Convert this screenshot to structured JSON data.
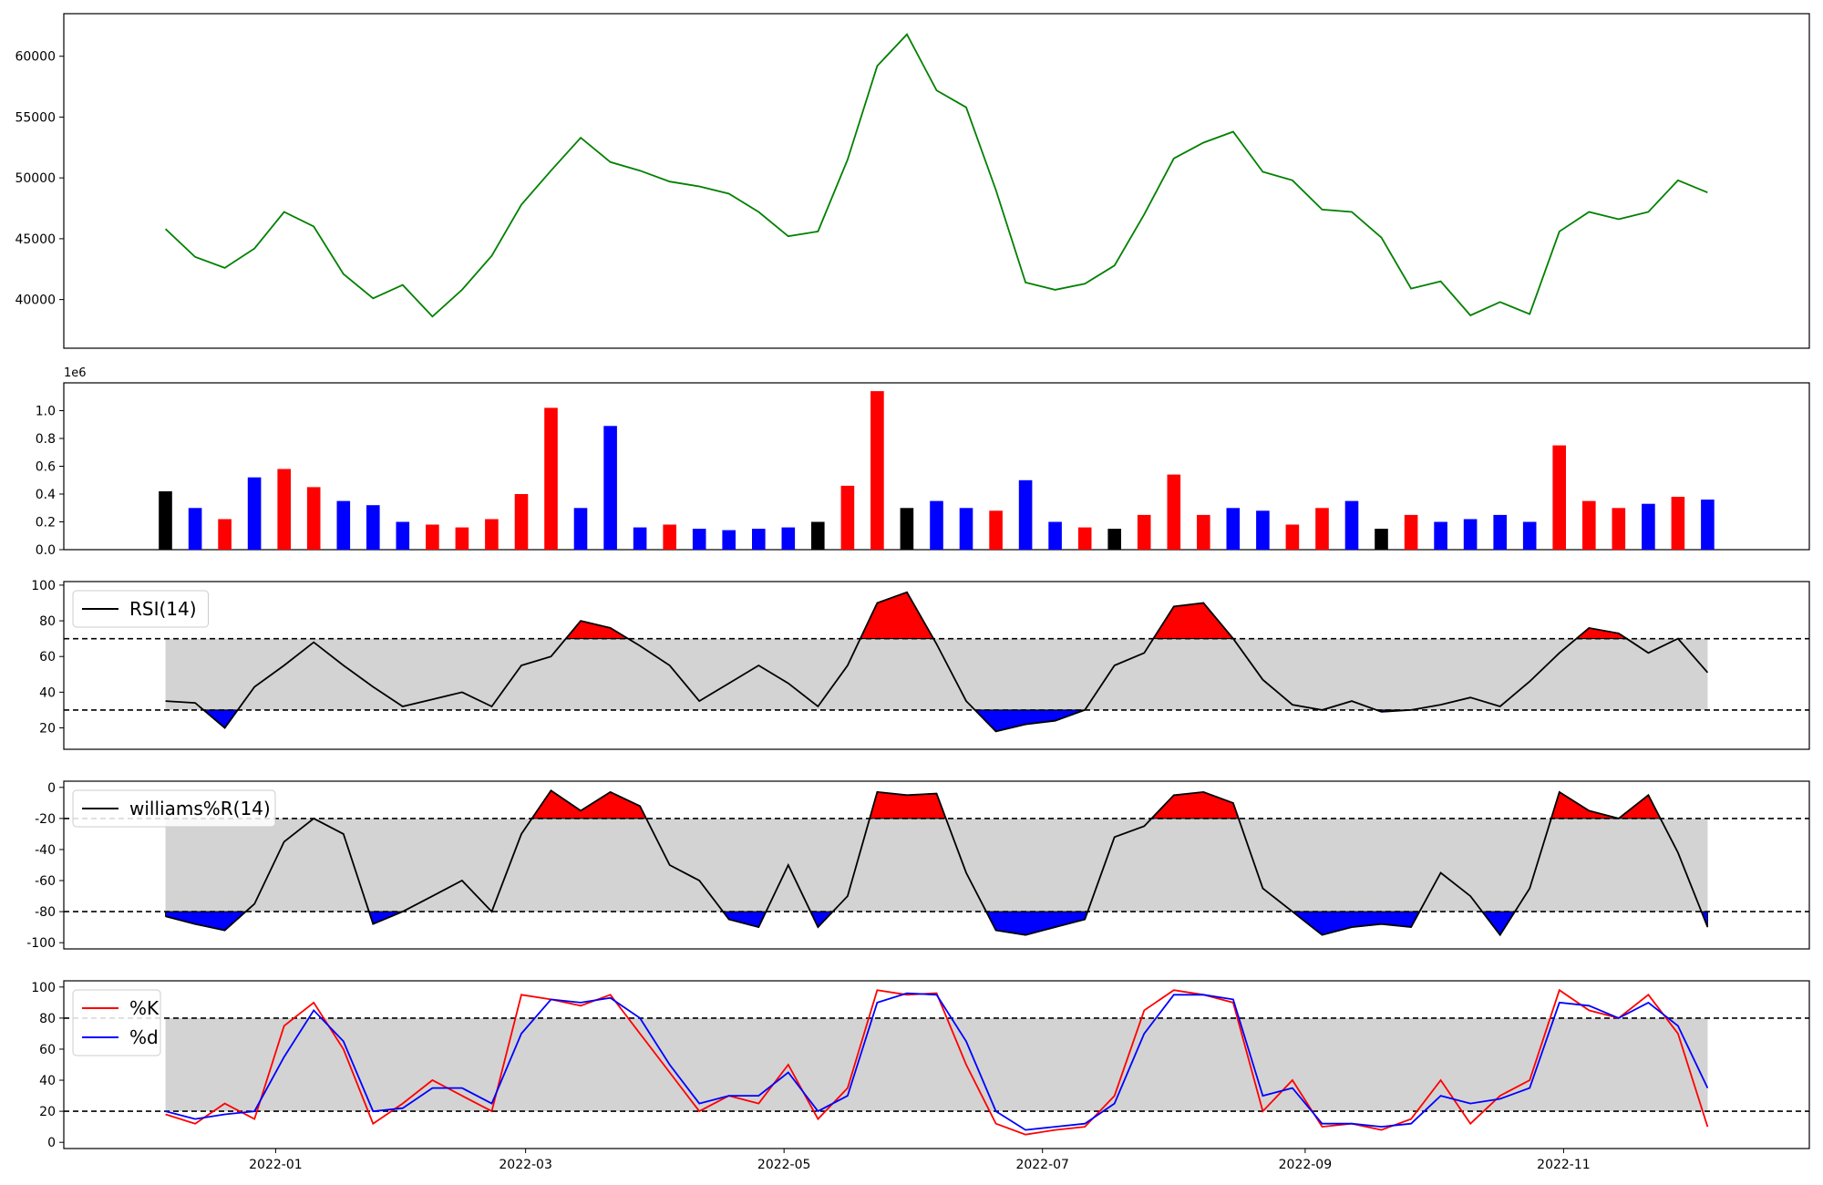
{
  "chart_data": [
    {
      "type": "line",
      "panel": "price",
      "color": "#008000",
      "ylim": [
        36000,
        63500
      ],
      "yticks": [
        "40000",
        "45000",
        "50000",
        "55000",
        "60000"
      ],
      "grid": false,
      "x": [
        "2021-12-06",
        "2021-12-13",
        "2021-12-20",
        "2021-12-27",
        "2022-01-03",
        "2022-01-10",
        "2022-01-17",
        "2022-01-24",
        "2022-01-31",
        "2022-02-07",
        "2022-02-14",
        "2022-02-21",
        "2022-02-28",
        "2022-03-07",
        "2022-03-14",
        "2022-03-21",
        "2022-03-28",
        "2022-04-04",
        "2022-04-11",
        "2022-04-18",
        "2022-04-25",
        "2022-05-02",
        "2022-05-09",
        "2022-05-16",
        "2022-05-23",
        "2022-05-30",
        "2022-06-06",
        "2022-06-13",
        "2022-06-20",
        "2022-06-27",
        "2022-07-04",
        "2022-07-11",
        "2022-07-18",
        "2022-07-25",
        "2022-08-01",
        "2022-08-08",
        "2022-08-15",
        "2022-08-22",
        "2022-08-29",
        "2022-09-05",
        "2022-09-12",
        "2022-09-19",
        "2022-09-26",
        "2022-10-03",
        "2022-10-10",
        "2022-10-17",
        "2022-10-24",
        "2022-10-31",
        "2022-11-07",
        "2022-11-14",
        "2022-11-21",
        "2022-11-28",
        "2022-12-05"
      ],
      "values": [
        45800,
        43500,
        42600,
        44200,
        47200,
        46000,
        42100,
        40100,
        41200,
        38600,
        40800,
        43600,
        47800,
        50600,
        53300,
        51300,
        50600,
        49700,
        49300,
        48700,
        47200,
        45200,
        45600,
        51500,
        59200,
        61800,
        57200,
        55800,
        49000,
        41400,
        40800,
        41300,
        42800,
        47000,
        51600,
        52900,
        53800,
        50500,
        49800,
        47400,
        47200,
        45100,
        40900,
        41500,
        38700,
        39800,
        38800,
        45600,
        47200,
        46600,
        47200,
        49800,
        48800
      ]
    },
    {
      "type": "bar",
      "panel": "volume",
      "offset_label": "1e6",
      "ylim": [
        0,
        1.2
      ],
      "yticks": [
        "0.0",
        "0.2",
        "0.4",
        "0.6",
        "0.8",
        "1.0"
      ],
      "colors": {
        "up": "#ff0000",
        "down": "#0000ff",
        "flat": "#000000"
      },
      "x": [
        "2021-12-06",
        "2021-12-13",
        "2021-12-20",
        "2021-12-27",
        "2022-01-03",
        "2022-01-10",
        "2022-01-17",
        "2022-01-24",
        "2022-01-31",
        "2022-02-07",
        "2022-02-14",
        "2022-02-21",
        "2022-02-28",
        "2022-03-07",
        "2022-03-14",
        "2022-03-21",
        "2022-03-28",
        "2022-04-04",
        "2022-04-11",
        "2022-04-18",
        "2022-04-25",
        "2022-05-02",
        "2022-05-09",
        "2022-05-16",
        "2022-05-23",
        "2022-05-30",
        "2022-06-06",
        "2022-06-13",
        "2022-06-20",
        "2022-06-27",
        "2022-07-04",
        "2022-07-11",
        "2022-07-18",
        "2022-07-25",
        "2022-08-01",
        "2022-08-08",
        "2022-08-15",
        "2022-08-22",
        "2022-08-29",
        "2022-09-05",
        "2022-09-12",
        "2022-09-19",
        "2022-09-26",
        "2022-10-03",
        "2022-10-10",
        "2022-10-17",
        "2022-10-24",
        "2022-10-31",
        "2022-11-07",
        "2022-11-14",
        "2022-11-21",
        "2022-11-28",
        "2022-12-05"
      ],
      "values": [
        0.42,
        0.3,
        0.22,
        0.52,
        0.58,
        0.45,
        0.35,
        0.32,
        0.2,
        0.18,
        0.16,
        0.22,
        0.4,
        1.02,
        0.3,
        0.89,
        0.16,
        0.18,
        0.15,
        0.14,
        0.15,
        0.16,
        0.2,
        0.46,
        1.14,
        0.3,
        0.35,
        0.3,
        0.28,
        0.5,
        0.2,
        0.16,
        0.15,
        0.25,
        0.54,
        0.25,
        0.3,
        0.28,
        0.18,
        0.3,
        0.35,
        0.15,
        0.25,
        0.2,
        0.22,
        0.25,
        0.2,
        0.75,
        0.35,
        0.3,
        0.33,
        0.38,
        0.36
      ],
      "directions": [
        "flat",
        "down",
        "up",
        "down",
        "up",
        "up",
        "down",
        "down",
        "down",
        "up",
        "up",
        "up",
        "up",
        "up",
        "down",
        "down",
        "down",
        "up",
        "down",
        "down",
        "down",
        "down",
        "flat",
        "up",
        "up",
        "flat",
        "down",
        "down",
        "up",
        "down",
        "down",
        "up",
        "flat",
        "up",
        "up",
        "up",
        "down",
        "down",
        "up",
        "up",
        "down",
        "flat",
        "up",
        "down",
        "down",
        "down",
        "down",
        "up",
        "up",
        "up",
        "down",
        "up",
        "down"
      ]
    },
    {
      "type": "line",
      "panel": "rsi",
      "series": [
        {
          "name": "RSI(14)",
          "color": "#000000",
          "values": [
            35,
            34,
            20,
            43,
            55,
            68,
            55,
            43,
            32,
            36,
            40,
            32,
            55,
            60,
            80,
            76,
            66,
            55,
            35,
            45,
            55,
            45,
            32,
            55,
            90,
            96,
            67,
            35,
            18,
            22,
            24,
            30,
            55,
            62,
            88,
            90,
            70,
            47,
            33,
            30,
            35,
            29,
            30,
            33,
            37,
            32,
            46,
            62,
            76,
            73,
            62,
            70,
            51
          ]
        }
      ],
      "x": [
        "2021-12-06",
        "2021-12-13",
        "2021-12-20",
        "2021-12-27",
        "2022-01-03",
        "2022-01-10",
        "2022-01-17",
        "2022-01-24",
        "2022-01-31",
        "2022-02-07",
        "2022-02-14",
        "2022-02-21",
        "2022-02-28",
        "2022-03-07",
        "2022-03-14",
        "2022-03-21",
        "2022-03-28",
        "2022-04-04",
        "2022-04-11",
        "2022-04-18",
        "2022-04-25",
        "2022-05-02",
        "2022-05-09",
        "2022-05-16",
        "2022-05-23",
        "2022-05-30",
        "2022-06-06",
        "2022-06-13",
        "2022-06-20",
        "2022-06-27",
        "2022-07-04",
        "2022-07-11",
        "2022-07-18",
        "2022-07-25",
        "2022-08-01",
        "2022-08-08",
        "2022-08-15",
        "2022-08-22",
        "2022-08-29",
        "2022-09-05",
        "2022-09-12",
        "2022-09-19",
        "2022-09-26",
        "2022-10-03",
        "2022-10-10",
        "2022-10-17",
        "2022-10-24",
        "2022-10-31",
        "2022-11-07",
        "2022-11-14",
        "2022-11-21",
        "2022-11-28",
        "2022-12-05"
      ],
      "ylim": [
        8,
        102
      ],
      "yticks": [
        "20",
        "40",
        "60",
        "80",
        "100"
      ],
      "upper": 70,
      "lower": 30,
      "band_color": "#d3d3d3",
      "over_color": "#ff0000",
      "under_color": "#0000ff",
      "legend": "upper-left"
    },
    {
      "type": "line",
      "panel": "williams",
      "series": [
        {
          "name": "williams%R(14)",
          "color": "#000000",
          "values": [
            -83,
            -88,
            -92,
            -75,
            -35,
            -20,
            -30,
            -88,
            -80,
            -70,
            -60,
            -80,
            -30,
            -2,
            -15,
            -3,
            -12,
            -50,
            -60,
            -85,
            -90,
            -50,
            -90,
            -70,
            -3,
            -5,
            -4,
            -55,
            -92,
            -95,
            -90,
            -85,
            -32,
            -25,
            -5,
            -3,
            -10,
            -65,
            -80,
            -95,
            -90,
            -88,
            -90,
            -55,
            -70,
            -95,
            -65,
            -3,
            -15,
            -20,
            -5,
            -42,
            -90
          ]
        }
      ],
      "x": [
        "2021-12-06",
        "2021-12-13",
        "2021-12-20",
        "2021-12-27",
        "2022-01-03",
        "2022-01-10",
        "2022-01-17",
        "2022-01-24",
        "2022-01-31",
        "2022-02-07",
        "2022-02-14",
        "2022-02-21",
        "2022-02-28",
        "2022-03-07",
        "2022-03-14",
        "2022-03-21",
        "2022-03-28",
        "2022-04-04",
        "2022-04-11",
        "2022-04-18",
        "2022-04-25",
        "2022-05-02",
        "2022-05-09",
        "2022-05-16",
        "2022-05-23",
        "2022-05-30",
        "2022-06-06",
        "2022-06-13",
        "2022-06-20",
        "2022-06-27",
        "2022-07-04",
        "2022-07-11",
        "2022-07-18",
        "2022-07-25",
        "2022-08-01",
        "2022-08-08",
        "2022-08-15",
        "2022-08-22",
        "2022-08-29",
        "2022-09-05",
        "2022-09-12",
        "2022-09-19",
        "2022-09-26",
        "2022-10-03",
        "2022-10-10",
        "2022-10-17",
        "2022-10-24",
        "2022-10-31",
        "2022-11-07",
        "2022-11-14",
        "2022-11-21",
        "2022-11-28",
        "2022-12-05"
      ],
      "ylim": [
        -104,
        4
      ],
      "yticks": [
        "-100",
        "-80",
        "-60",
        "-40",
        "-20",
        "0"
      ],
      "upper": -20,
      "lower": -80,
      "band_color": "#d3d3d3",
      "over_color": "#ff0000",
      "under_color": "#0000ff",
      "legend": "upper-left"
    },
    {
      "type": "line",
      "panel": "stochastic",
      "series": [
        {
          "name": "%K",
          "color": "#ff0000",
          "values": [
            18,
            12,
            25,
            15,
            75,
            90,
            60,
            12,
            25,
            40,
            30,
            20,
            95,
            92,
            88,
            95,
            70,
            45,
            20,
            30,
            25,
            50,
            15,
            35,
            98,
            95,
            96,
            50,
            12,
            5,
            8,
            10,
            30,
            85,
            98,
            95,
            90,
            20,
            40,
            10,
            12,
            8,
            15,
            40,
            12,
            30,
            40,
            98,
            85,
            80,
            95,
            70,
            10
          ]
        },
        {
          "name": "%d",
          "color": "#0000ff",
          "values": [
            20,
            15,
            18,
            20,
            55,
            85,
            65,
            20,
            22,
            35,
            35,
            25,
            70,
            92,
            90,
            93,
            80,
            50,
            25,
            30,
            30,
            45,
            20,
            30,
            90,
            96,
            95,
            65,
            20,
            8,
            10,
            12,
            25,
            70,
            95,
            95,
            92,
            30,
            35,
            12,
            12,
            10,
            12,
            30,
            25,
            28,
            35,
            90,
            88,
            80,
            90,
            75,
            35
          ]
        }
      ],
      "x": [
        "2021-12-06",
        "2021-12-13",
        "2021-12-20",
        "2021-12-27",
        "2022-01-03",
        "2022-01-10",
        "2022-01-17",
        "2022-01-24",
        "2022-01-31",
        "2022-02-07",
        "2022-02-14",
        "2022-02-21",
        "2022-02-28",
        "2022-03-07",
        "2022-03-14",
        "2022-03-21",
        "2022-03-28",
        "2022-04-04",
        "2022-04-11",
        "2022-04-18",
        "2022-04-25",
        "2022-05-02",
        "2022-05-09",
        "2022-05-16",
        "2022-05-23",
        "2022-05-30",
        "2022-06-06",
        "2022-06-13",
        "2022-06-20",
        "2022-06-27",
        "2022-07-04",
        "2022-07-11",
        "2022-07-18",
        "2022-07-25",
        "2022-08-01",
        "2022-08-08",
        "2022-08-15",
        "2022-08-22",
        "2022-08-29",
        "2022-09-05",
        "2022-09-12",
        "2022-09-19",
        "2022-09-26",
        "2022-10-03",
        "2022-10-10",
        "2022-10-17",
        "2022-10-24",
        "2022-10-31",
        "2022-11-07",
        "2022-11-14",
        "2022-11-21",
        "2022-11-28",
        "2022-12-05"
      ],
      "ylim": [
        -4,
        104
      ],
      "yticks": [
        "0",
        "20",
        "40",
        "60",
        "80",
        "100"
      ],
      "upper": 80,
      "lower": 20,
      "band_color": "#d3d3d3",
      "legend": "upper-left"
    }
  ],
  "x_axis": {
    "xlim": [
      "2021-11-12",
      "2022-12-29"
    ],
    "ticks": [
      {
        "date": "2022-01-01",
        "label": "2022-01"
      },
      {
        "date": "2022-03-01",
        "label": "2022-03"
      },
      {
        "date": "2022-05-01",
        "label": "2022-05"
      },
      {
        "date": "2022-07-01",
        "label": "2022-07"
      },
      {
        "date": "2022-09-01",
        "label": "2022-09"
      },
      {
        "date": "2022-11-01",
        "label": "2022-11"
      }
    ]
  }
}
